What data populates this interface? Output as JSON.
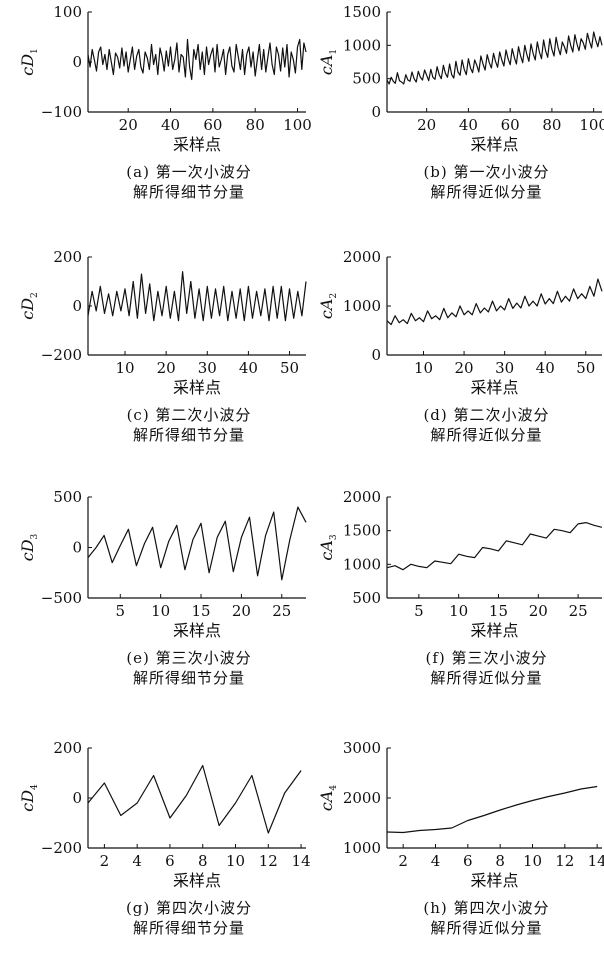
{
  "panels": [
    {
      "id": "a",
      "caption_line1": "(a) 第一次小波分",
      "caption_line2": "解所得细节分量",
      "ylabel_base": "cD",
      "ylabel_sub": "1",
      "xlabel": "采样点"
    },
    {
      "id": "b",
      "caption_line1": "(b) 第一次小波分",
      "caption_line2": "解所得近似分量",
      "ylabel_base": "cA",
      "ylabel_sub": "1",
      "xlabel": "采样点"
    },
    {
      "id": "c",
      "caption_line1": "(c) 第二次小波分",
      "caption_line2": "解所得细节分量",
      "ylabel_base": "cD",
      "ylabel_sub": "2",
      "xlabel": "采样点"
    },
    {
      "id": "d",
      "caption_line1": "(d) 第二次小波分",
      "caption_line2": "解所得近似分量",
      "ylabel_base": "cA",
      "ylabel_sub": "2",
      "xlabel": "采样点"
    },
    {
      "id": "e",
      "caption_line1": "(e) 第三次小波分",
      "caption_line2": "解所得细节分量",
      "ylabel_base": "cD",
      "ylabel_sub": "3",
      "xlabel": "采样点"
    },
    {
      "id": "f",
      "caption_line1": "(f) 第三次小波分",
      "caption_line2": "解所得近似分量",
      "ylabel_base": "cA",
      "ylabel_sub": "3",
      "xlabel": "采样点"
    },
    {
      "id": "g",
      "caption_line1": "(g) 第四次小波分",
      "caption_line2": "解所得细节分量",
      "ylabel_base": "cD",
      "ylabel_sub": "4",
      "xlabel": "采样点"
    },
    {
      "id": "h",
      "caption_line1": "(h) 第四次小波分",
      "caption_line2": "解所得近似分量",
      "ylabel_base": "cA",
      "ylabel_sub": "4",
      "xlabel": "采样点"
    }
  ],
  "chart_data": [
    {
      "type": "line",
      "panel": "a",
      "xlim": [
        1,
        104
      ],
      "ylim": [
        -100,
        100
      ],
      "xticks": [
        20,
        40,
        60,
        80,
        100
      ],
      "yticks": [
        -100,
        0,
        100
      ],
      "x": [
        1,
        2,
        3,
        4,
        5,
        6,
        7,
        8,
        9,
        10,
        11,
        12,
        13,
        14,
        15,
        16,
        17,
        18,
        19,
        20,
        21,
        22,
        23,
        24,
        25,
        26,
        27,
        28,
        29,
        30,
        31,
        32,
        33,
        34,
        35,
        36,
        37,
        38,
        39,
        40,
        41,
        42,
        43,
        44,
        45,
        46,
        47,
        48,
        49,
        50,
        51,
        52,
        53,
        54,
        55,
        56,
        57,
        58,
        59,
        60,
        61,
        62,
        63,
        64,
        65,
        66,
        67,
        68,
        69,
        70,
        71,
        72,
        73,
        74,
        75,
        76,
        77,
        78,
        79,
        80,
        81,
        82,
        83,
        84,
        85,
        86,
        87,
        88,
        89,
        90,
        91,
        92,
        93,
        94,
        95,
        96,
        97,
        98,
        99,
        100,
        101,
        102,
        103,
        104
      ],
      "y": [
        15,
        -10,
        25,
        5,
        -18,
        20,
        30,
        -5,
        15,
        -15,
        25,
        0,
        -25,
        18,
        10,
        -12,
        28,
        -8,
        20,
        -20,
        5,
        30,
        -15,
        12,
        25,
        -10,
        -22,
        20,
        8,
        -15,
        35,
        -5,
        15,
        -25,
        28,
        10,
        -18,
        22,
        -8,
        30,
        -15,
        5,
        38,
        -20,
        15,
        10,
        -30,
        45,
        -10,
        -35,
        25,
        5,
        35,
        -15,
        20,
        -25,
        30,
        -5,
        15,
        28,
        -20,
        35,
        -10,
        5,
        25,
        -25,
        15,
        30,
        -8,
        -20,
        35,
        10,
        -15,
        25,
        -25,
        15,
        30,
        -10,
        20,
        -28,
        5,
        35,
        -15,
        25,
        -20,
        10,
        38,
        -5,
        -25,
        30,
        15,
        -18,
        28,
        -10,
        35,
        -30,
        20,
        5,
        -22,
        30,
        45,
        -15,
        38,
        20
      ]
    },
    {
      "type": "line",
      "panel": "b",
      "xlim": [
        1,
        104
      ],
      "ylim": [
        0,
        1500
      ],
      "xticks": [
        20,
        40,
        60,
        80,
        100
      ],
      "yticks": [
        0,
        500,
        1000,
        1500
      ],
      "x": [
        1,
        2,
        3,
        4,
        5,
        6,
        7,
        8,
        9,
        10,
        11,
        12,
        13,
        14,
        15,
        16,
        17,
        18,
        19,
        20,
        21,
        22,
        23,
        24,
        25,
        26,
        27,
        28,
        29,
        30,
        31,
        32,
        33,
        34,
        35,
        36,
        37,
        38,
        39,
        40,
        41,
        42,
        43,
        44,
        45,
        46,
        47,
        48,
        49,
        50,
        51,
        52,
        53,
        54,
        55,
        56,
        57,
        58,
        59,
        60,
        61,
        62,
        63,
        64,
        65,
        66,
        67,
        68,
        69,
        70,
        71,
        72,
        73,
        74,
        75,
        76,
        77,
        78,
        79,
        80,
        81,
        82,
        83,
        84,
        85,
        86,
        87,
        88,
        89,
        90,
        91,
        92,
        93,
        94,
        95,
        96,
        97,
        98,
        99,
        100,
        101,
        102,
        103,
        104
      ],
      "y": [
        480,
        420,
        520,
        460,
        430,
        590,
        470,
        450,
        420,
        560,
        480,
        460,
        600,
        500,
        450,
        610,
        520,
        480,
        630,
        550,
        470,
        640,
        520,
        490,
        680,
        560,
        500,
        700,
        580,
        520,
        720,
        560,
        510,
        760,
        600,
        550,
        780,
        640,
        560,
        800,
        660,
        590,
        780,
        700,
        600,
        840,
        720,
        630,
        860,
        740,
        660,
        880,
        760,
        670,
        900,
        780,
        690,
        930,
        800,
        710,
        950,
        820,
        720,
        980,
        840,
        740,
        1000,
        860,
        760,
        1020,
        880,
        780,
        1050,
        900,
        800,
        1080,
        920,
        820,
        1100,
        940,
        840,
        1120,
        960,
        860,
        1050,
        980,
        880,
        1140,
        1000,
        900,
        1160,
        1020,
        920,
        1100,
        1040,
        940,
        1180,
        1060,
        960,
        1200,
        1080,
        980,
        1130,
        1000
      ]
    },
    {
      "type": "line",
      "panel": "c",
      "xlim": [
        1,
        54
      ],
      "ylim": [
        -200,
        200
      ],
      "xticks": [
        10,
        20,
        30,
        40,
        50
      ],
      "yticks": [
        -200,
        0,
        200
      ],
      "x": [
        1,
        2,
        3,
        4,
        5,
        6,
        7,
        8,
        9,
        10,
        11,
        12,
        13,
        14,
        15,
        16,
        17,
        18,
        19,
        20,
        21,
        22,
        23,
        24,
        25,
        26,
        27,
        28,
        29,
        30,
        31,
        32,
        33,
        34,
        35,
        36,
        37,
        38,
        39,
        40,
        41,
        42,
        43,
        44,
        45,
        46,
        47,
        48,
        49,
        50,
        51,
        52,
        53,
        54
      ],
      "y": [
        -40,
        60,
        -20,
        80,
        -30,
        50,
        -40,
        60,
        -20,
        70,
        -40,
        100,
        -50,
        130,
        -30,
        90,
        -60,
        60,
        -40,
        80,
        -50,
        60,
        -60,
        140,
        -30,
        100,
        -50,
        70,
        -60,
        80,
        -50,
        70,
        -40,
        80,
        -60,
        60,
        -50,
        70,
        -60,
        80,
        -50,
        60,
        -40,
        70,
        -60,
        80,
        -50,
        80,
        -60,
        70,
        -50,
        60,
        -40,
        100
      ]
    },
    {
      "type": "line",
      "panel": "d",
      "xlim": [
        1,
        54
      ],
      "ylim": [
        0,
        2000
      ],
      "xticks": [
        10,
        20,
        30,
        40,
        50
      ],
      "yticks": [
        0,
        1000,
        2000
      ],
      "x": [
        1,
        2,
        3,
        4,
        5,
        6,
        7,
        8,
        9,
        10,
        11,
        12,
        13,
        14,
        15,
        16,
        17,
        18,
        19,
        20,
        21,
        22,
        23,
        24,
        25,
        26,
        27,
        28,
        29,
        30,
        31,
        32,
        33,
        34,
        35,
        36,
        37,
        38,
        39,
        40,
        41,
        42,
        43,
        44,
        45,
        46,
        47,
        48,
        49,
        50,
        51,
        52,
        53,
        54
      ],
      "y": [
        700,
        620,
        800,
        660,
        720,
        640,
        850,
        700,
        760,
        680,
        900,
        740,
        800,
        720,
        950,
        760,
        860,
        780,
        1000,
        820,
        900,
        820,
        1050,
        860,
        960,
        880,
        1100,
        900,
        1000,
        920,
        1150,
        950,
        1060,
        960,
        1200,
        1000,
        1100,
        1000,
        1250,
        1040,
        1150,
        1050,
        1300,
        1080,
        1200,
        1100,
        1350,
        1150,
        1250,
        1150,
        1400,
        1200,
        1550,
        1300
      ]
    },
    {
      "type": "line",
      "panel": "e",
      "xlim": [
        1,
        28
      ],
      "ylim": [
        -500,
        500
      ],
      "xticks": [
        5,
        10,
        15,
        20,
        25
      ],
      "yticks": [
        -500,
        0,
        500
      ],
      "x": [
        1,
        2,
        3,
        4,
        5,
        6,
        7,
        8,
        9,
        10,
        11,
        12,
        13,
        14,
        15,
        16,
        17,
        18,
        19,
        20,
        21,
        22,
        23,
        24,
        25,
        26,
        27,
        28
      ],
      "y": [
        -100,
        0,
        120,
        -150,
        20,
        180,
        -180,
        40,
        200,
        -200,
        60,
        220,
        -220,
        80,
        240,
        -250,
        100,
        260,
        -240,
        100,
        300,
        -280,
        120,
        350,
        -320,
        80,
        400,
        250
      ]
    },
    {
      "type": "line",
      "panel": "f",
      "xlim": [
        1,
        28
      ],
      "ylim": [
        500,
        2000
      ],
      "xticks": [
        5,
        10,
        15,
        20,
        25
      ],
      "yticks": [
        500,
        1000,
        1500,
        2000
      ],
      "x": [
        1,
        2,
        3,
        4,
        5,
        6,
        7,
        8,
        9,
        10,
        11,
        12,
        13,
        14,
        15,
        16,
        17,
        18,
        19,
        20,
        21,
        22,
        23,
        24,
        25,
        26,
        27,
        28
      ],
      "y": [
        950,
        980,
        920,
        1000,
        970,
        950,
        1050,
        1030,
        1010,
        1150,
        1120,
        1100,
        1250,
        1230,
        1200,
        1350,
        1320,
        1290,
        1450,
        1420,
        1390,
        1520,
        1500,
        1470,
        1600,
        1620,
        1580,
        1550
      ]
    },
    {
      "type": "line",
      "panel": "g",
      "xlim": [
        1,
        14.3
      ],
      "ylim": [
        -200,
        200
      ],
      "xticks": [
        2,
        4,
        6,
        8,
        10,
        12,
        14
      ],
      "yticks": [
        -200,
        0,
        200
      ],
      "x": [
        1,
        2,
        3,
        4,
        5,
        6,
        7,
        8,
        9,
        10,
        11,
        12,
        13,
        14
      ],
      "y": [
        -20,
        60,
        -70,
        -20,
        90,
        -80,
        10,
        130,
        -110,
        -20,
        90,
        -140,
        20,
        110
      ]
    },
    {
      "type": "line",
      "panel": "h",
      "xlim": [
        1,
        14.3
      ],
      "ylim": [
        1000,
        3000
      ],
      "xticks": [
        2,
        4,
        6,
        8,
        10,
        12,
        14
      ],
      "yticks": [
        1000,
        2000,
        3000
      ],
      "x": [
        1,
        2,
        3,
        4,
        5,
        6,
        7,
        8,
        9,
        10,
        11,
        12,
        13,
        14
      ],
      "y": [
        1320,
        1310,
        1350,
        1370,
        1400,
        1550,
        1650,
        1760,
        1860,
        1950,
        2030,
        2100,
        2180,
        2230
      ]
    }
  ]
}
